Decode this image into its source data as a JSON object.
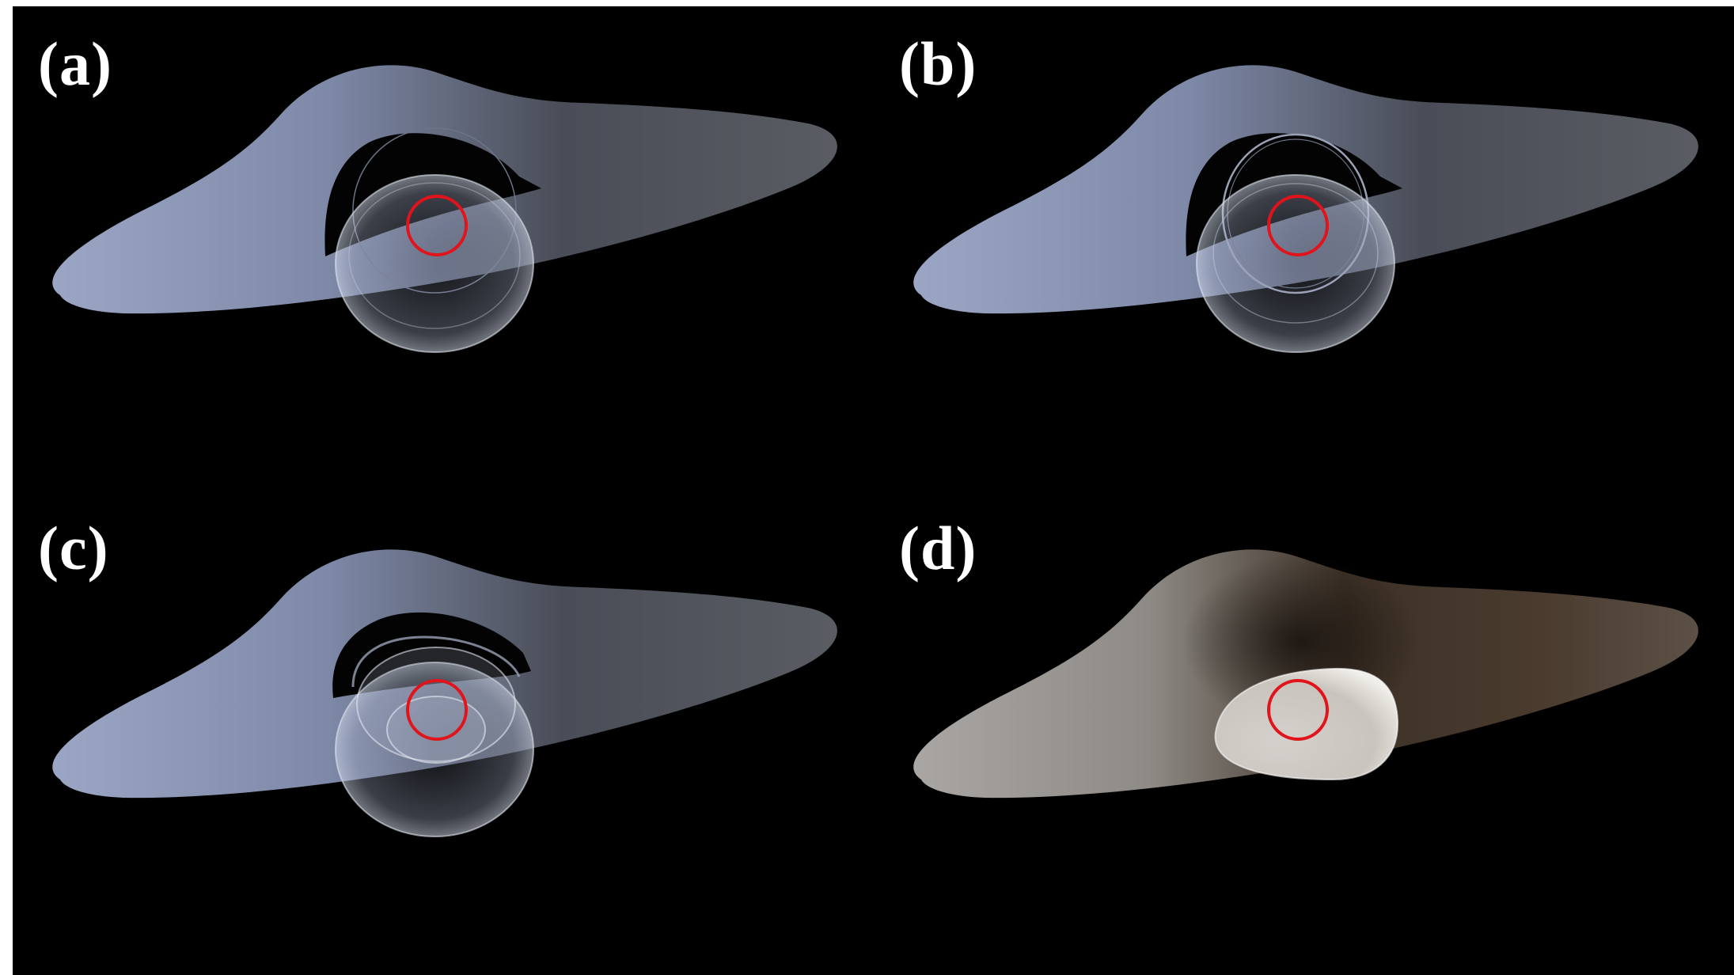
{
  "figure": {
    "panels": [
      {
        "id": "a",
        "label": "(a)"
      },
      {
        "id": "b",
        "label": "(b)"
      },
      {
        "id": "c",
        "label": "(c)"
      },
      {
        "id": "d",
        "label": "(d)"
      }
    ]
  },
  "colors": {
    "background": "#000000",
    "disk_light": "#8e9ab8",
    "disk_dark": "#3b3d44",
    "disk_warm_light": "#a9a59f",
    "disk_warm_dark": "#3d3127",
    "ring_marker": "#e0141a",
    "label_text": "#ffffff"
  }
}
